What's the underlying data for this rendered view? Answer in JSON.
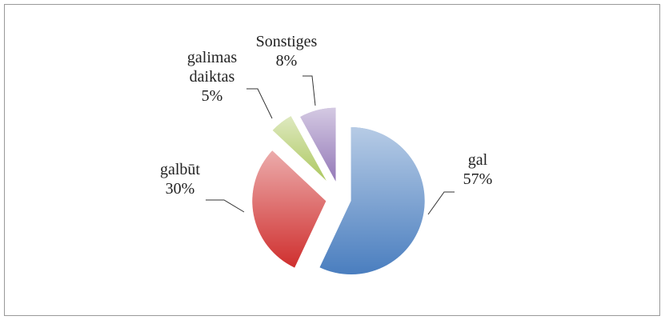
{
  "chart_data": {
    "type": "pie",
    "categories": [
      "gal",
      "galbūt",
      "galimas daiktas",
      "Sonstiges"
    ],
    "values": [
      57,
      30,
      5,
      8
    ],
    "value_labels": [
      "57%",
      "30%",
      "5%",
      "8%"
    ],
    "colors": [
      "#4a7ebf",
      "#cf2f2e",
      "#adc860",
      "#9479b8"
    ]
  }
}
